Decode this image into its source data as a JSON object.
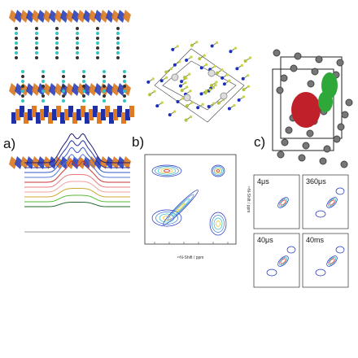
{
  "panels": [
    {
      "label": "a)"
    },
    {
      "label": "b)",
      "x_axis_label": "¹⁵N-Shift / ppm",
      "y_axis_label": "¹⁵N-Shift / ppm"
    },
    {
      "label": "c)",
      "insets": [
        "4μs",
        "360μs",
        "40μs",
        "40ms"
      ]
    }
  ]
}
